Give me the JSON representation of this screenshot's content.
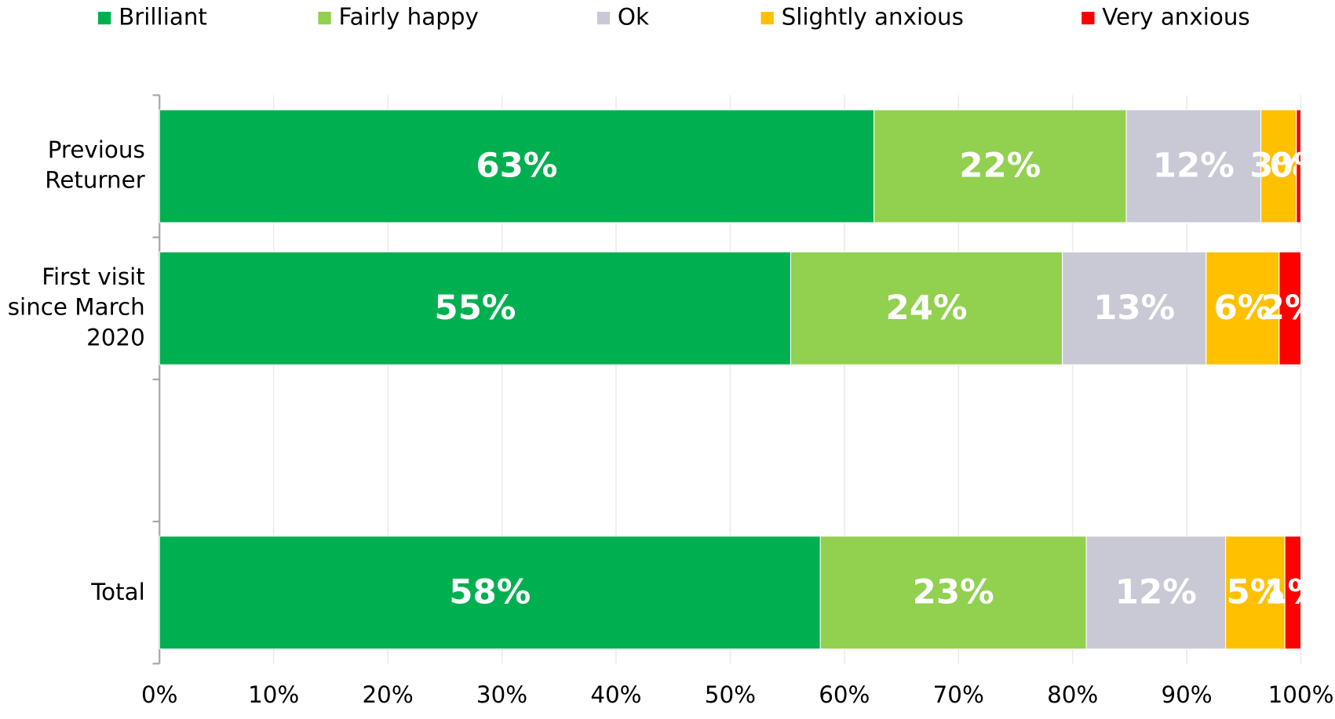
{
  "chart_data": {
    "type": "stacked-barh",
    "categories": [
      "Previous Returner",
      "First visit since March 2020",
      null,
      "Total"
    ],
    "series": [
      {
        "name": "Brilliant",
        "color": "#00b050",
        "values": [
          62.6,
          55.3,
          null,
          57.9
        ],
        "value_labels": [
          "63%",
          "55%",
          null,
          "58%"
        ]
      },
      {
        "name": "Fairly happy",
        "color": "#92d050",
        "values": [
          22.1,
          23.8,
          null,
          23.3
        ],
        "value_labels": [
          "22%",
          "24%",
          null,
          "23%"
        ]
      },
      {
        "name": "Ok",
        "color": "#c9c9d6",
        "values": [
          11.8,
          12.6,
          null,
          12.2
        ],
        "value_labels": [
          "12%",
          "13%",
          null,
          "12%"
        ]
      },
      {
        "name": "Slightly anxious",
        "color": "#ffc000",
        "values": [
          3.1,
          6.4,
          null,
          5.2
        ],
        "value_labels": [
          "3%",
          "6%",
          null,
          "5%"
        ]
      },
      {
        "name": "Very anxious",
        "color": "#ff0000",
        "values": [
          0.4,
          1.9,
          null,
          1.4
        ],
        "value_labels": [
          "0%",
          "2%",
          null,
          "1%"
        ]
      }
    ],
    "xlim": [
      0,
      100
    ],
    "xticks": [
      {
        "value": 0,
        "label": "0%"
      },
      {
        "value": 10,
        "label": "10%"
      },
      {
        "value": 20,
        "label": "20%"
      },
      {
        "value": 30,
        "label": "30%"
      },
      {
        "value": 40,
        "label": "40%"
      },
      {
        "value": 50,
        "label": "50%"
      },
      {
        "value": 60,
        "label": "60%"
      },
      {
        "value": 70,
        "label": "70%"
      },
      {
        "value": 80,
        "label": "80%"
      },
      {
        "value": 90,
        "label": "90%"
      },
      {
        "value": 100,
        "label": "100%"
      }
    ],
    "grid": true,
    "legend": "top"
  }
}
